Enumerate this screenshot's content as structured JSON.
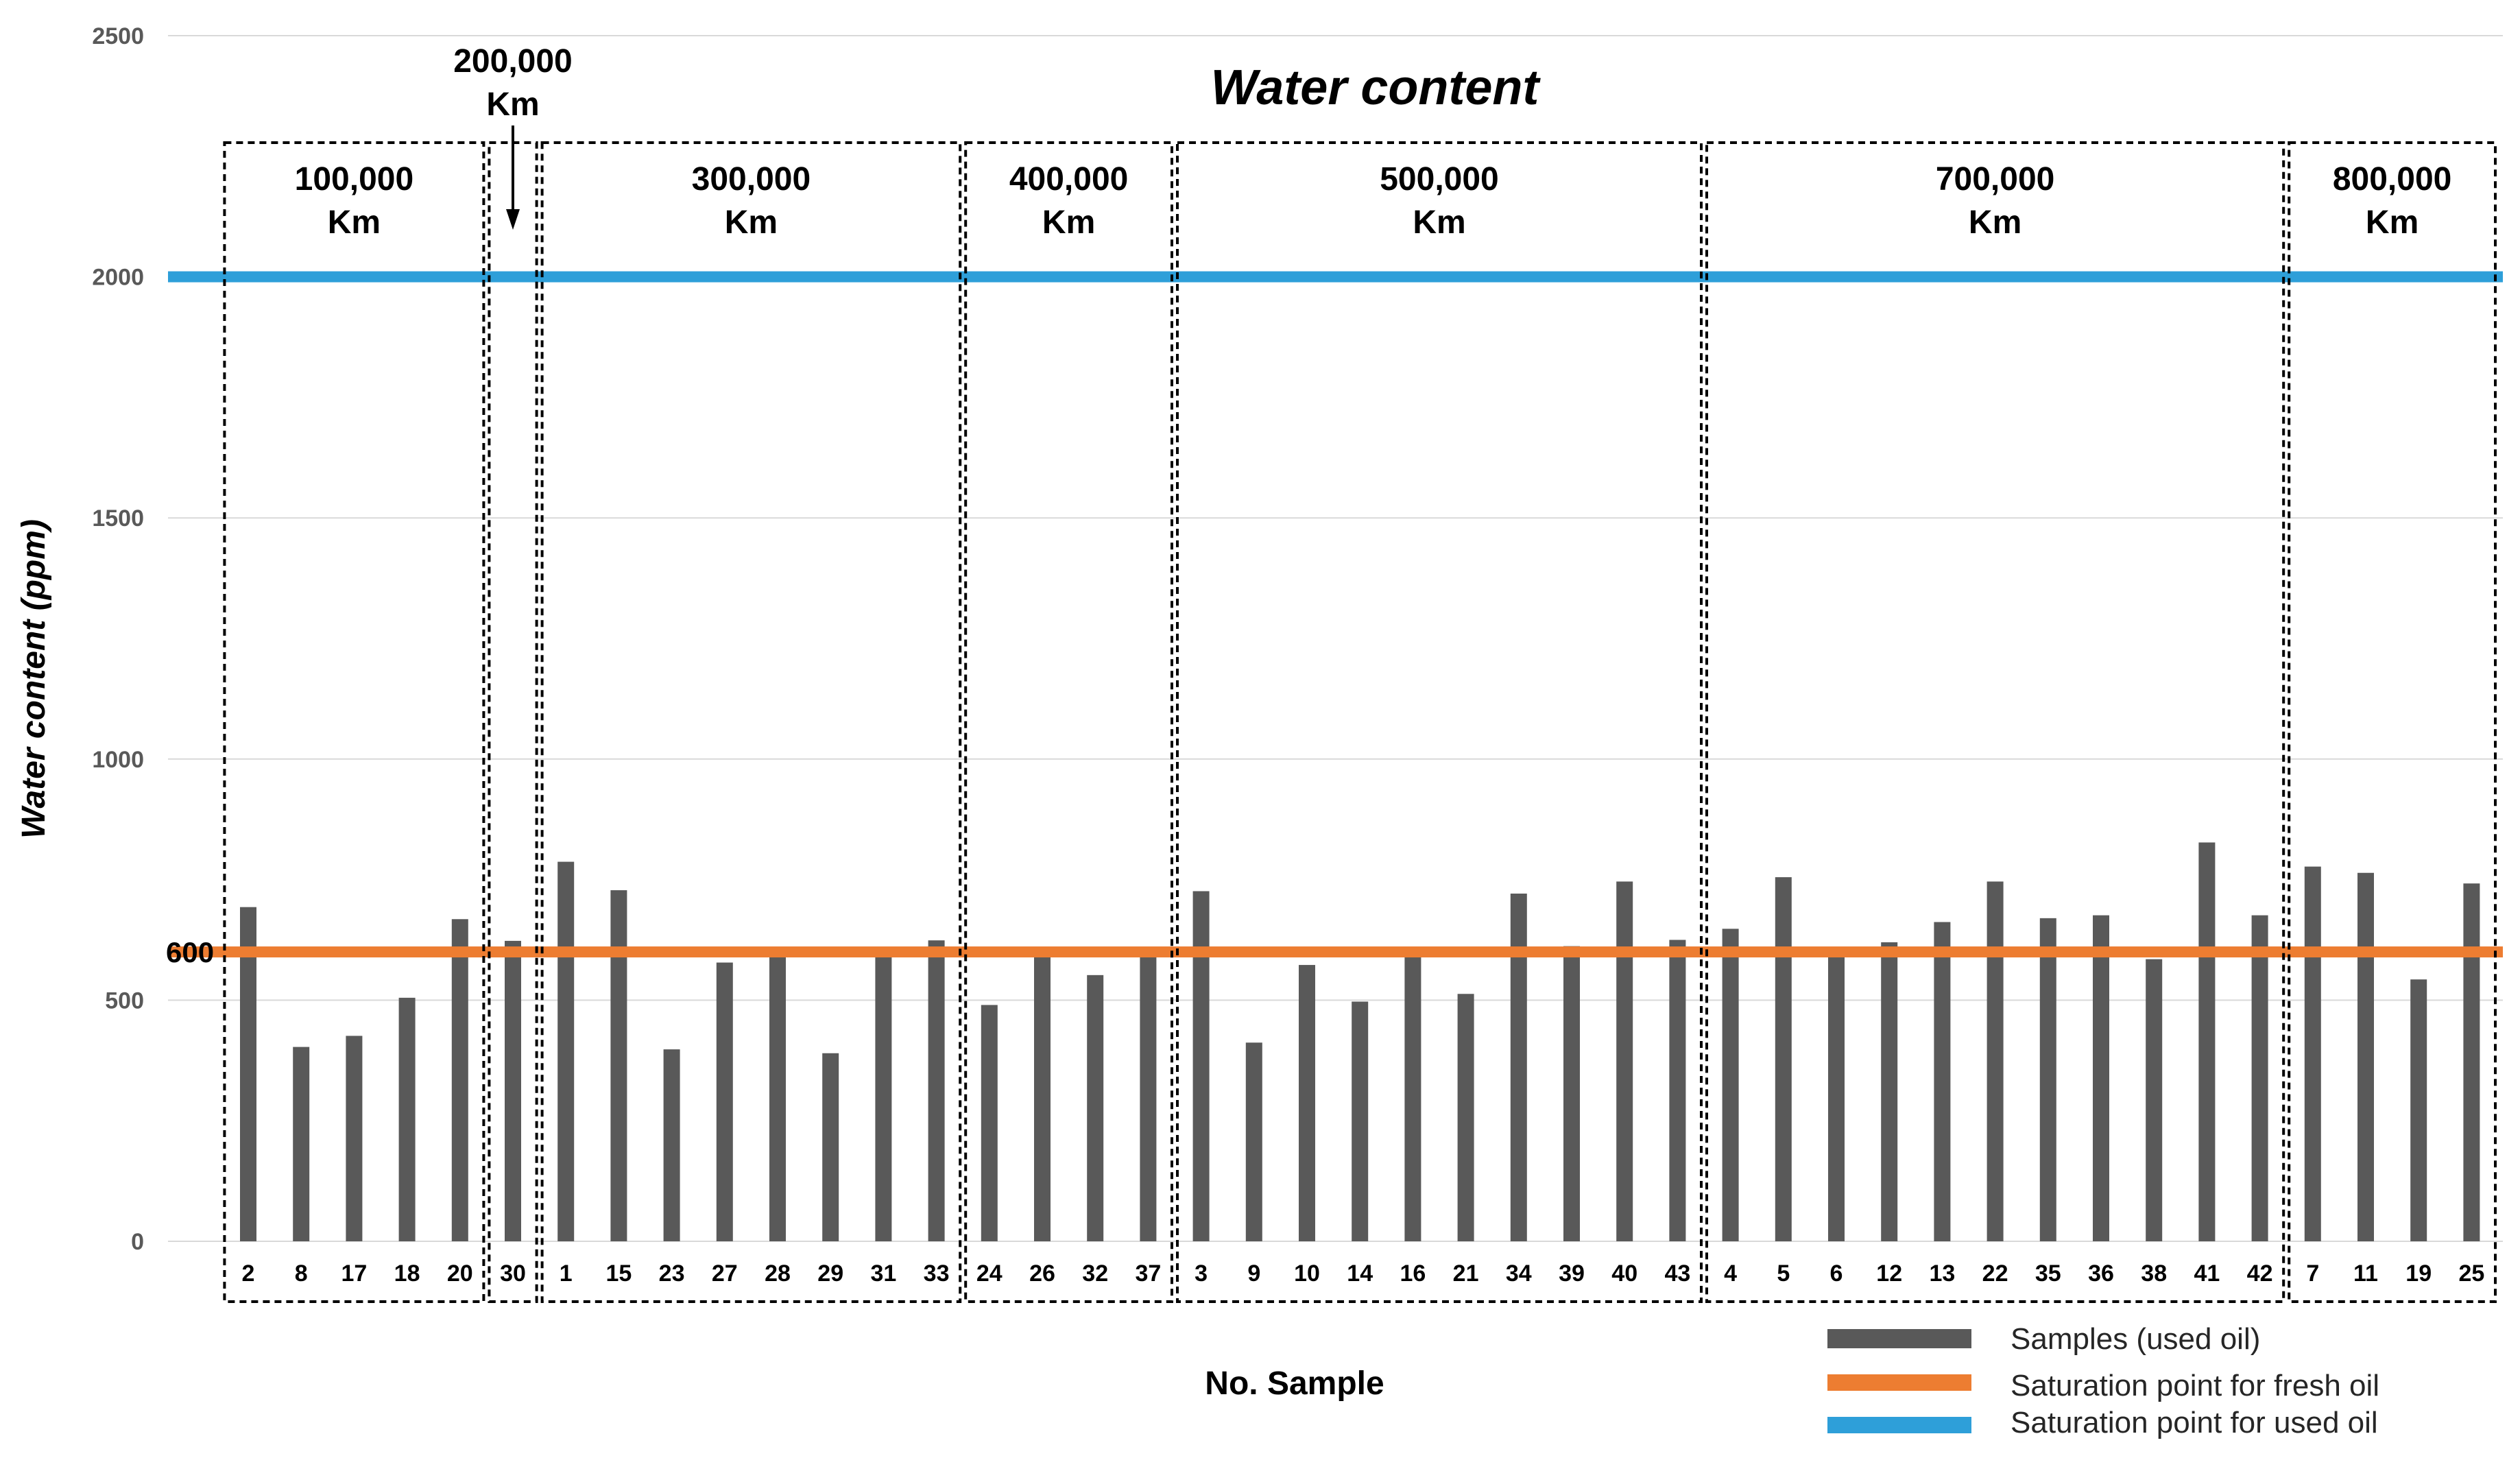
{
  "chart_data": {
    "type": "bar",
    "title": "Water content",
    "xlabel": "No. Sample",
    "ylabel": "Water content (ppm)",
    "ylim": [
      0,
      2500
    ],
    "yticks": [
      "0",
      "500",
      "1000",
      "1500",
      "2000",
      "2500"
    ],
    "grid": true,
    "categories": [
      "2",
      "8",
      "17",
      "18",
      "20",
      "30",
      "1",
      "15",
      "23",
      "27",
      "28",
      "29",
      "31",
      "33",
      "24",
      "26",
      "32",
      "37",
      "3",
      "9",
      "10",
      "14",
      "16",
      "21",
      "34",
      "39",
      "40",
      "43",
      "4",
      "5",
      "6",
      "12",
      "13",
      "22",
      "35",
      "36",
      "38",
      "41",
      "42",
      "7",
      "11",
      "19",
      "25"
    ],
    "series": [
      {
        "name": "Samples (used oil)",
        "color": "#595959",
        "values": [
          693,
          403,
          426,
          505,
          668,
          623,
          787,
          728,
          398,
          578,
          592,
          390,
          596,
          624,
          490,
          590,
          552,
          597,
          726,
          412,
          573,
          497,
          598,
          513,
          721,
          612,
          746,
          625,
          648,
          755,
          591,
          620,
          662,
          746,
          670,
          676,
          585,
          827,
          676,
          777,
          764,
          543,
          742
        ]
      }
    ],
    "reference_lines": [
      {
        "name": "Saturation point for fresh oil",
        "value": 600,
        "color": "#ED7D31",
        "label": "600"
      },
      {
        "name": "Saturation point for used oil",
        "value": 2000,
        "color": "#2E9FD9"
      }
    ],
    "groups": [
      {
        "line1": "100,000",
        "line2": "Km",
        "start": 0,
        "end": 4
      },
      {
        "line1": "200,000",
        "line2": "Km",
        "start": 5,
        "end": 5,
        "arrow": true
      },
      {
        "line1": "300,000",
        "line2": "Km",
        "start": 6,
        "end": 13
      },
      {
        "line1": "400,000",
        "line2": "Km",
        "start": 14,
        "end": 17
      },
      {
        "line1": "500,000",
        "line2": "Km",
        "start": 18,
        "end": 27
      },
      {
        "line1": "700,000",
        "line2": "Km",
        "start": 28,
        "end": 38
      },
      {
        "line1": "800,000",
        "line2": "Km",
        "start": 39,
        "end": 42
      }
    ],
    "legend": {
      "position": "bottom-right",
      "entries": [
        "Samples (used oil)",
        "Saturation point for fresh oil",
        "Saturation point for used oil"
      ]
    }
  }
}
